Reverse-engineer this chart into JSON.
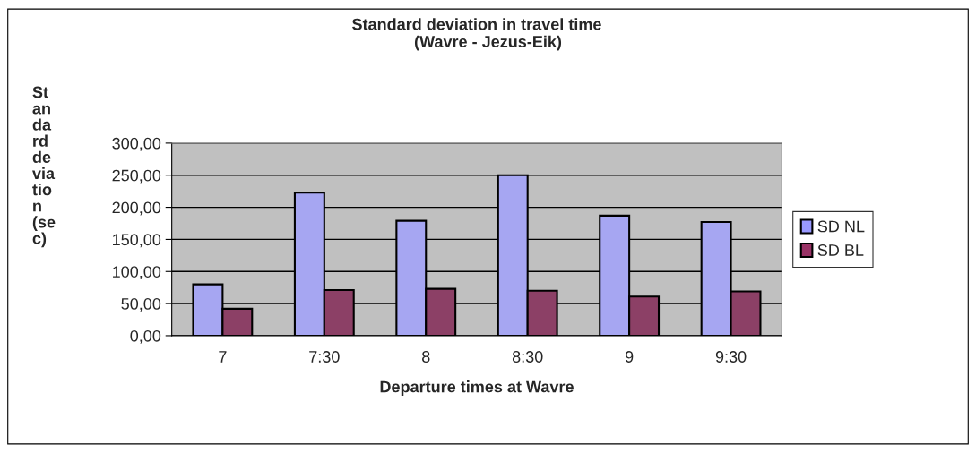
{
  "chart_data": {
    "type": "bar",
    "title": "Standard deviation in travel time     \n(Wavre - Jezus-Eik)",
    "xlabel": "Departure times at Wavre",
    "ylabel": "St\nan\nda\nrd\nde\nvia\ntio\nn\n(se\nc)",
    "categories": [
      "7",
      "7:30",
      "8",
      "8:30",
      "9",
      "9:30"
    ],
    "series": [
      {
        "name": "SD NL",
        "color": "#9999ff",
        "values": [
          80,
          223,
          179,
          250,
          187,
          177
        ]
      },
      {
        "name": "SD BL",
        "color": "#993366",
        "values": [
          42,
          71,
          73,
          70,
          61,
          69
        ]
      }
    ],
    "ylim": [
      0,
      300
    ],
    "yticks": [
      {
        "value": 0,
        "label": "0,00"
      },
      {
        "value": 50,
        "label": "50,00"
      },
      {
        "value": 100,
        "label": "100,00"
      },
      {
        "value": 150,
        "label": "150,00"
      },
      {
        "value": 200,
        "label": "200,00"
      },
      {
        "value": 250,
        "label": "250,00"
      },
      {
        "value": 300,
        "label": "300,00"
      }
    ],
    "grid": "y",
    "legend": "right"
  }
}
